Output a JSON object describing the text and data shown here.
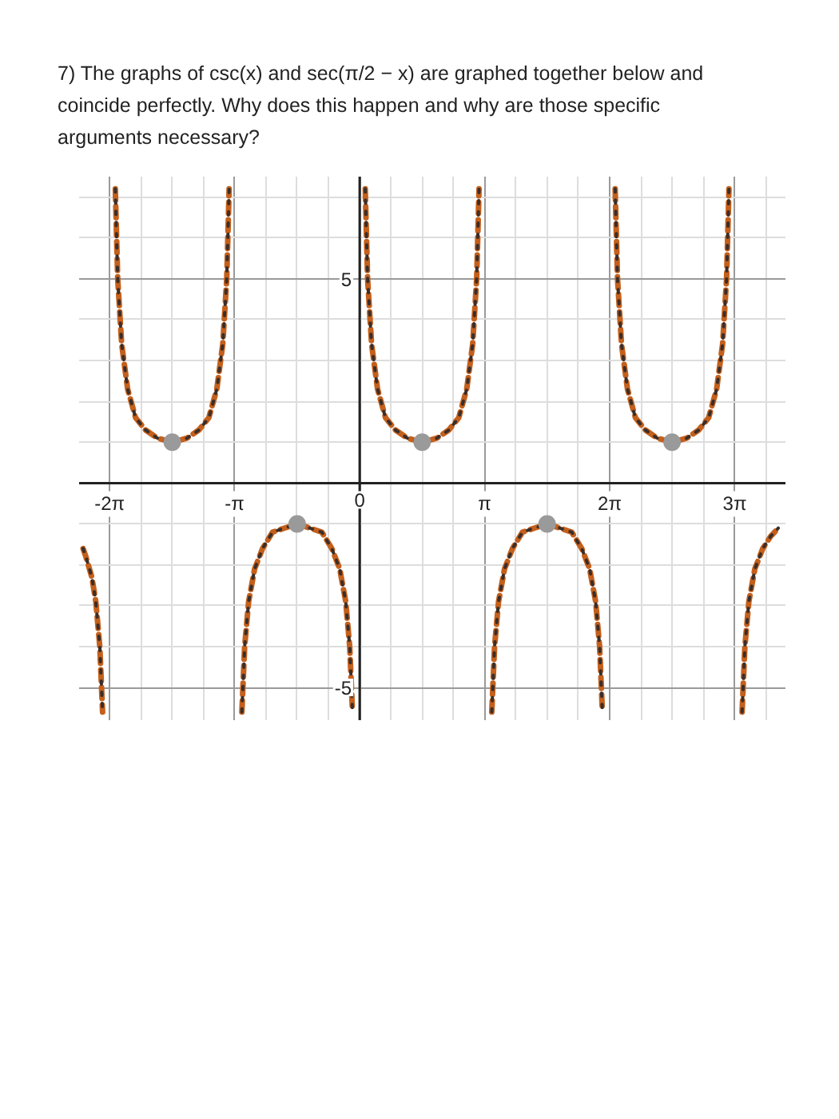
{
  "chart_data": {
    "type": "line",
    "title": "7) The graphs of csc(x) and sec(π/2 − x) are graphed together below and coincide perfectly. Why does this happen and why are those specific arguments necessary?",
    "xlim": [
      -7.05,
      10.7
    ],
    "ylim": [
      -5.8,
      7.5
    ],
    "xticks": [
      {
        "value": -6.283,
        "label": "-2π"
      },
      {
        "value": -3.142,
        "label": "-π"
      },
      0,
      {
        "value": 3.142,
        "label": "π"
      },
      {
        "value": 6.283,
        "label": "2π"
      },
      {
        "value": 9.425,
        "label": "3π"
      }
    ],
    "yticks": [
      -5,
      {
        "value": 0,
        "label": null
      },
      5
    ],
    "grid": true,
    "x": [
      -6.95,
      -6.88,
      -6.73,
      -6.63,
      -6.53,
      -6.46,
      -6.28,
      -6.14,
      -6.08,
      -5.98,
      -5.83,
      -5.63,
      -5.38,
      -5.08,
      -4.71,
      -4.34,
      -4.04,
      -3.79,
      -3.59,
      -3.44,
      -3.34,
      -3.28,
      -3.14,
      -2.96,
      -2.89,
      -2.79,
      -2.64,
      -2.44,
      -2.19,
      -1.89,
      -1.57,
      -1.25,
      -0.95,
      -0.7,
      -0.5,
      -0.35,
      -0.25,
      -0.18,
      0,
      0.14,
      0.2,
      0.3,
      0.45,
      0.65,
      0.9,
      1.2,
      1.57,
      1.94,
      2.24,
      2.49,
      2.69,
      2.84,
      2.94,
      3.0,
      3.14,
      3.32,
      3.39,
      3.49,
      3.64,
      3.84,
      4.09,
      4.39,
      4.71,
      5.03,
      5.33,
      5.58,
      5.78,
      5.93,
      6.03,
      6.1,
      6.28,
      6.42,
      6.48,
      6.58,
      6.73,
      6.93,
      7.18,
      7.48,
      7.85,
      8.22,
      8.52,
      8.77,
      8.97,
      9.12,
      9.22,
      9.28,
      9.42,
      9.61,
      9.68,
      9.78,
      9.93,
      10.13,
      10.33,
      10.52
    ],
    "series": [
      {
        "color": "#c4601c",
        "line_style": "dashed",
        "values": [
          -1.6,
          -1.8,
          -2.3,
          -2.9,
          -4.0,
          -5.6,
          null,
          7.2,
          5.0,
          3.4,
          2.3,
          1.6,
          1.3,
          1.1,
          1,
          1.1,
          1.3,
          1.6,
          2.3,
          3.4,
          5.0,
          7.2,
          null,
          -5.6,
          -4.0,
          -2.9,
          -2.1,
          -1.6,
          -1.2,
          -1.1,
          -1,
          -1.1,
          -1.2,
          -1.6,
          -2.1,
          -2.9,
          -4.0,
          -5.6,
          null,
          7.2,
          5.0,
          3.4,
          2.3,
          1.6,
          1.3,
          1.1,
          1,
          1.1,
          1.3,
          1.6,
          2.3,
          3.4,
          5.0,
          7.2,
          null,
          -5.6,
          -4.0,
          -2.9,
          -2.1,
          -1.6,
          -1.2,
          -1.1,
          -1,
          -1.1,
          -1.2,
          -1.6,
          -2.1,
          -2.9,
          -4.0,
          -5.6,
          null,
          7.2,
          5.0,
          3.4,
          2.3,
          1.6,
          1.3,
          1.1,
          1,
          1.1,
          1.3,
          1.6,
          2.3,
          3.4,
          5.0,
          7.2,
          null,
          -5.6,
          -4.0,
          -2.9,
          -2.1,
          -1.6,
          -1.3,
          -1.1
        ]
      },
      {
        "color": "#3a2e2a",
        "line_style": "dotted",
        "values": [
          -1.6,
          -1.8,
          -2.3,
          -2.9,
          -4.0,
          -5.6,
          null,
          7.2,
          5.0,
          3.4,
          2.3,
          1.6,
          1.3,
          1.1,
          1,
          1.1,
          1.3,
          1.6,
          2.3,
          3.4,
          5.0,
          7.2,
          null,
          -5.6,
          -4.0,
          -2.9,
          -2.1,
          -1.6,
          -1.2,
          -1.1,
          -1,
          -1.1,
          -1.2,
          -1.6,
          -2.1,
          -2.9,
          -4.0,
          -5.6,
          null,
          7.2,
          5.0,
          3.4,
          2.3,
          1.6,
          1.3,
          1.1,
          1,
          1.1,
          1.3,
          1.6,
          2.3,
          3.4,
          5.0,
          7.2,
          null,
          -5.6,
          -4.0,
          -2.9,
          -2.1,
          -1.6,
          -1.2,
          -1.1,
          -1,
          -1.1,
          -1.2,
          -1.6,
          -2.1,
          -2.9,
          -4.0,
          -5.6,
          null,
          7.2,
          5.0,
          3.4,
          2.3,
          1.6,
          1.3,
          1.1,
          1,
          1.1,
          1.3,
          1.6,
          2.3,
          3.4,
          5.0,
          7.2,
          null,
          -5.6,
          -4.0,
          -2.9,
          -2.1,
          -1.6,
          -1.3,
          -1.1
        ]
      },
      {
        "type": "scatter",
        "marker": "circle",
        "color": "#9a9a9a",
        "x": [
          -4.71,
          -1.57,
          1.57,
          4.71,
          7.85
        ],
        "values": [
          1,
          -1,
          1,
          -1,
          1
        ]
      }
    ]
  }
}
